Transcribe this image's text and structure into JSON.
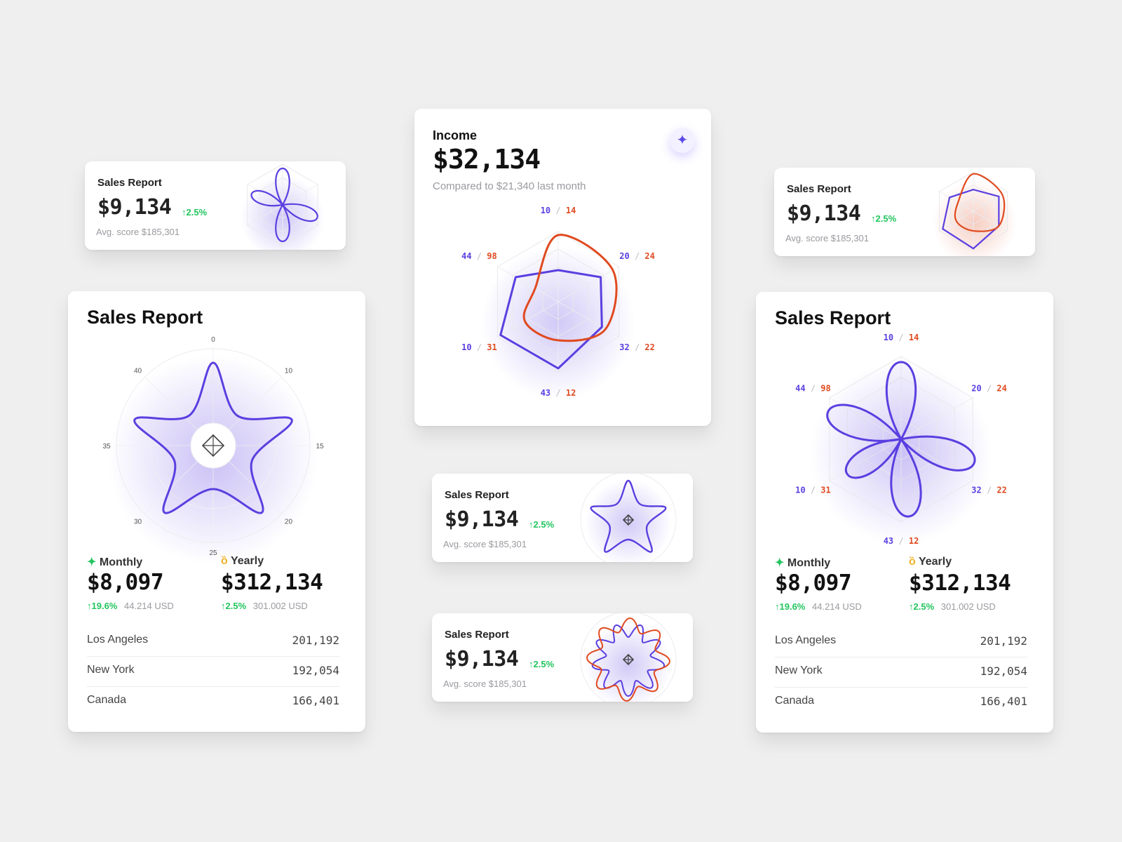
{
  "colors": {
    "purple": "#5b3fe0",
    "orange": "#e04a1f",
    "green": "#22c55e",
    "gold": "#f0b429"
  },
  "small_cards": [
    {
      "title": "Sales Report",
      "amount": "$9,134",
      "change": "↑2.5%",
      "avg": "Avg. score $185,301",
      "icon": "trefoil-radar"
    },
    {
      "title": "Sales Report",
      "amount": "$9,134",
      "change": "↑2.5%",
      "avg": "Avg. score $185,301",
      "icon": "hexagon-radar"
    },
    {
      "title": "Sales Report",
      "amount": "$9,134",
      "change": "↑2.5%",
      "avg": "Avg. score $185,301",
      "icon": "star-radar"
    },
    {
      "title": "Sales Report",
      "amount": "$9,134",
      "change": "↑2.5%",
      "avg": "Avg. score $185,301",
      "icon": "wave-radar"
    }
  ],
  "income": {
    "title": "Income",
    "amount": "$32,134",
    "subtitle": "Compared to $21,340 last month",
    "icon": "sparkle-icon",
    "axis_labels": [
      {
        "a": "10",
        "b": "14"
      },
      {
        "a": "20",
        "b": "24"
      },
      {
        "a": "32",
        "b": "22"
      },
      {
        "a": "43",
        "b": "12"
      },
      {
        "a": "10",
        "b": "31"
      },
      {
        "a": "44",
        "b": "98"
      }
    ]
  },
  "sales_left": {
    "title": "Sales Report",
    "ticks": [
      "0",
      "10",
      "15",
      "20",
      "25",
      "30",
      "35",
      "40"
    ],
    "monthly": {
      "label": "Monthly",
      "value": "$8,097",
      "change": "↑19.6%",
      "usd": "44.214 USD"
    },
    "yearly": {
      "label": "Yearly",
      "value": "$312,134",
      "change": "↑2.5%",
      "usd": "301.002 USD"
    },
    "rows": [
      {
        "city": "Los Angeles",
        "value": "201,192"
      },
      {
        "city": "New York",
        "value": "192,054"
      },
      {
        "city": "Canada",
        "value": "166,401"
      }
    ]
  },
  "sales_right": {
    "title": "Sales Report",
    "axis_labels": [
      {
        "a": "10",
        "b": "14"
      },
      {
        "a": "20",
        "b": "24"
      },
      {
        "a": "32",
        "b": "22"
      },
      {
        "a": "43",
        "b": "12"
      },
      {
        "a": "10",
        "b": "31"
      },
      {
        "a": "44",
        "b": "98"
      }
    ],
    "monthly": {
      "label": "Monthly",
      "value": "$8,097",
      "change": "↑19.6%",
      "usd": "44.214 USD"
    },
    "yearly": {
      "label": "Yearly",
      "value": "$312,134",
      "change": "↑2.5%",
      "usd": "301.002 USD"
    },
    "rows": [
      {
        "city": "Los Angeles",
        "value": "201,192"
      },
      {
        "city": "New York",
        "value": "192,054"
      },
      {
        "city": "Canada",
        "value": "166,401"
      }
    ]
  },
  "chart_data": [
    {
      "type": "radar",
      "title": "Income",
      "categories": [
        "10/14",
        "20/24",
        "32/22",
        "43/12",
        "10/31",
        "44/98"
      ],
      "series": [
        {
          "values": [
            0.45,
            0.7,
            0.72,
            0.95,
            0.95,
            0.7
          ]
        },
        {
          "values": [
            0.95,
            0.9,
            0.78,
            0.55,
            0.55,
            0.38
          ]
        }
      ]
    },
    {
      "type": "radar",
      "title": "Sales Report",
      "categories": [
        "0",
        "10",
        "15",
        "20",
        "25",
        "30",
        "35",
        "40"
      ],
      "shape": "star"
    },
    {
      "type": "radar",
      "title": "Sales Report",
      "categories": [
        "10/14",
        "20/24",
        "32/22",
        "43/12",
        "10/31",
        "44/98"
      ],
      "shape": "petals"
    }
  ]
}
